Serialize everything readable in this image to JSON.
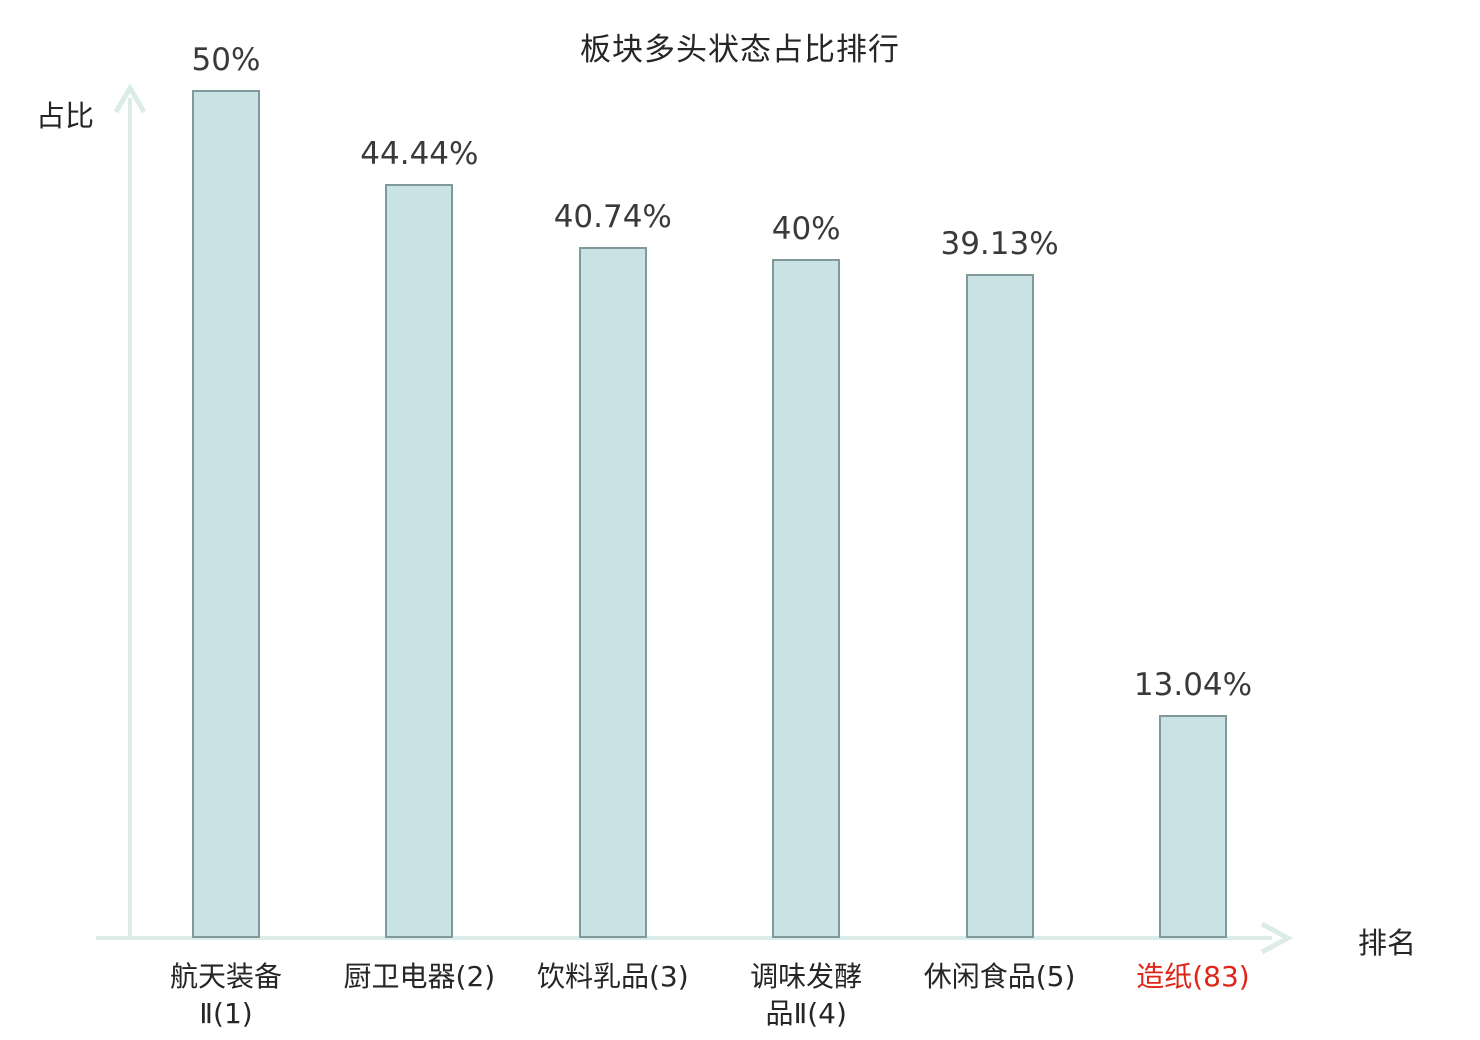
{
  "chart_data": {
    "type": "bar",
    "title": "板块多头状态占比排行",
    "ylabel": "占比",
    "xlabel": "排名",
    "ylim": [
      0,
      50
    ],
    "grid": false,
    "legend": null,
    "categories": [
      {
        "label": "航天装备Ⅱ(1)",
        "lines": [
          "航天装备",
          "Ⅱ(1)"
        ],
        "highlight": false
      },
      {
        "label": "厨卫电器(2)",
        "lines": [
          "厨卫电器(2)"
        ],
        "highlight": false
      },
      {
        "label": "饮料乳品(3)",
        "lines": [
          "饮料乳品(3)"
        ],
        "highlight": false
      },
      {
        "label": "调味发酵品Ⅱ(4)",
        "lines": [
          "调味发酵",
          "品Ⅱ(4)"
        ],
        "highlight": false
      },
      {
        "label": "休闲食品(5)",
        "lines": [
          "休闲食品(5)"
        ],
        "highlight": false
      },
      {
        "label": "造纸(83)",
        "lines": [
          "造纸(83)"
        ],
        "highlight": true
      }
    ],
    "values": [
      50,
      44.44,
      40.74,
      40,
      39.13,
      13.04
    ],
    "value_labels": [
      "50%",
      "44.44%",
      "40.74%",
      "40%",
      "39.13%",
      "13.04%"
    ],
    "colors": {
      "bar_fill": "#c9e3e5",
      "bar_border": "#7f999c",
      "axis": "#dcece9",
      "value_text": "#3a3a3a",
      "category_text": "#262626",
      "title_text": "#262626",
      "highlight": "#e02418",
      "background": "#ffffff"
    }
  }
}
